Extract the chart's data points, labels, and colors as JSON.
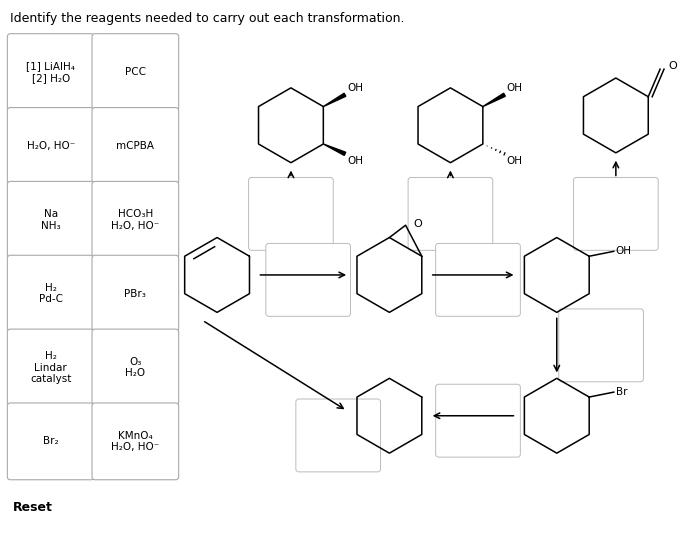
{
  "title": "Identify the reagents needed to carry out each transformation.",
  "bg_color": "#ffffff",
  "reagent_boxes_left": [
    {
      "label": "[1] LiAlH₄\n[2] H₂O",
      "fontsize": 7.5
    },
    {
      "label": "H₂O, HO⁻",
      "fontsize": 7.5
    },
    {
      "label": "Na\nNH₃",
      "fontsize": 7.5
    },
    {
      "label": "H₂\nPd-C",
      "fontsize": 7.5
    },
    {
      "label": "H₂\nLindar\ncatalyst",
      "fontsize": 7.5
    },
    {
      "label": "Br₂",
      "fontsize": 7.5
    }
  ],
  "reagent_boxes_right": [
    {
      "label": "PCC",
      "fontsize": 7.5
    },
    {
      "label": "mCPBA",
      "fontsize": 7.5
    },
    {
      "label": "HCO₃H\nH₂O, HO⁻",
      "fontsize": 7.5
    },
    {
      "label": "PBr₃",
      "fontsize": 7.5
    },
    {
      "label": "O₃\nH₂O",
      "fontsize": 7.5
    },
    {
      "label": "KMnO₄\nH₂O, HO⁻",
      "fontsize": 7.5
    }
  ]
}
